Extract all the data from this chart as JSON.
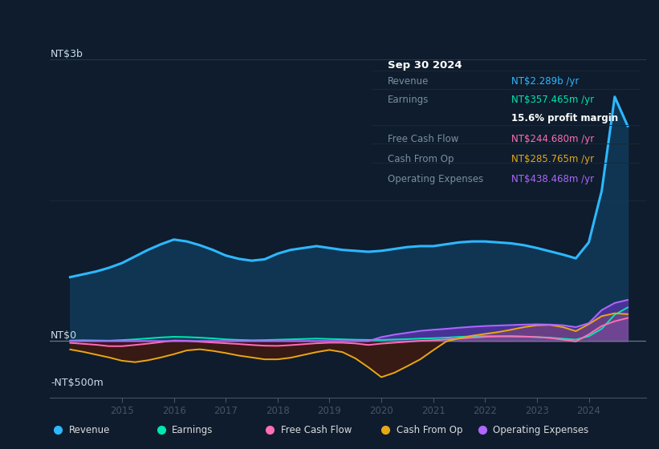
{
  "bg_color": "#0e1c2d",
  "chart_bg": "#0e1c2d",
  "ylabel_top": "NT$3b",
  "ylabel_zero": "NT$0",
  "ylabel_bottom": "-NT$500m",
  "ylim": [
    -0.6,
    3.2
  ],
  "xlim": [
    2013.6,
    2025.1
  ],
  "legend": [
    {
      "label": "Revenue",
      "color": "#2db8ff"
    },
    {
      "label": "Earnings",
      "color": "#00e6b0"
    },
    {
      "label": "Free Cash Flow",
      "color": "#ff6eb4"
    },
    {
      "label": "Cash From Op",
      "color": "#e6a817"
    },
    {
      "label": "Operating Expenses",
      "color": "#b066ff"
    }
  ],
  "tooltip": {
    "date": "Sep 30 2024",
    "rows": [
      {
        "label": "Revenue",
        "value": "NT$2.289b /yr",
        "value_color": "#2db8ff",
        "bold_value": false
      },
      {
        "label": "Earnings",
        "value": "NT$357.465m /yr",
        "value_color": "#00e6b0",
        "bold_value": false
      },
      {
        "label": "",
        "value": "15.6% profit margin",
        "value_color": "#ffffff",
        "bold_value": true
      },
      {
        "label": "Free Cash Flow",
        "value": "NT$244.680m /yr",
        "value_color": "#ff6eb4",
        "bold_value": false
      },
      {
        "label": "Cash From Op",
        "value": "NT$285.765m /yr",
        "value_color": "#e6a817",
        "bold_value": false
      },
      {
        "label": "Operating Expenses",
        "value": "NT$438.468m /yr",
        "value_color": "#b066ff",
        "bold_value": false
      }
    ]
  },
  "years": [
    2014.0,
    2014.25,
    2014.5,
    2014.75,
    2015.0,
    2015.25,
    2015.5,
    2015.75,
    2016.0,
    2016.25,
    2016.5,
    2016.75,
    2017.0,
    2017.25,
    2017.5,
    2017.75,
    2018.0,
    2018.25,
    2018.5,
    2018.75,
    2019.0,
    2019.25,
    2019.5,
    2019.75,
    2020.0,
    2020.25,
    2020.5,
    2020.75,
    2021.0,
    2021.25,
    2021.5,
    2021.75,
    2022.0,
    2022.25,
    2022.5,
    2022.75,
    2023.0,
    2023.25,
    2023.5,
    2023.75,
    2024.0,
    2024.25,
    2024.5,
    2024.75
  ],
  "revenue_m": [
    680,
    710,
    740,
    780,
    830,
    900,
    970,
    1030,
    1080,
    1060,
    1020,
    970,
    910,
    875,
    855,
    870,
    930,
    970,
    990,
    1010,
    990,
    970,
    960,
    950,
    960,
    980,
    1000,
    1010,
    1010,
    1030,
    1050,
    1060,
    1060,
    1050,
    1040,
    1020,
    990,
    955,
    920,
    880,
    1050,
    1600,
    2600,
    2289
  ],
  "earnings_m": [
    5,
    8,
    6,
    4,
    10,
    18,
    28,
    38,
    45,
    42,
    36,
    28,
    18,
    12,
    8,
    10,
    14,
    18,
    22,
    26,
    22,
    18,
    14,
    12,
    12,
    16,
    20,
    26,
    30,
    36,
    44,
    50,
    52,
    50,
    48,
    46,
    42,
    36,
    25,
    15,
    50,
    130,
    280,
    357
  ],
  "fcf_m": [
    -20,
    -30,
    -40,
    -55,
    -55,
    -42,
    -28,
    -12,
    5,
    2,
    -8,
    -16,
    -24,
    -32,
    -42,
    -50,
    -52,
    -44,
    -34,
    -24,
    -18,
    -18,
    -26,
    -42,
    -28,
    -18,
    -8,
    2,
    8,
    16,
    26,
    36,
    44,
    50,
    52,
    48,
    42,
    32,
    15,
    -5,
    70,
    160,
    210,
    245
  ],
  "cashop_m": [
    -90,
    -115,
    -145,
    -175,
    -210,
    -225,
    -205,
    -175,
    -140,
    -100,
    -88,
    -105,
    -128,
    -155,
    -175,
    -195,
    -195,
    -178,
    -148,
    -118,
    -95,
    -118,
    -185,
    -280,
    -385,
    -338,
    -268,
    -195,
    -98,
    -5,
    28,
    56,
    76,
    95,
    120,
    148,
    168,
    172,
    148,
    105,
    180,
    265,
    295,
    286
  ],
  "opex_m": [
    0,
    0,
    0,
    0,
    0,
    0,
    0,
    0,
    0,
    0,
    0,
    0,
    0,
    0,
    0,
    0,
    0,
    0,
    0,
    0,
    0,
    0,
    0,
    0,
    42,
    68,
    88,
    108,
    120,
    130,
    142,
    152,
    160,
    165,
    170,
    175,
    178,
    175,
    168,
    148,
    190,
    330,
    405,
    438
  ]
}
